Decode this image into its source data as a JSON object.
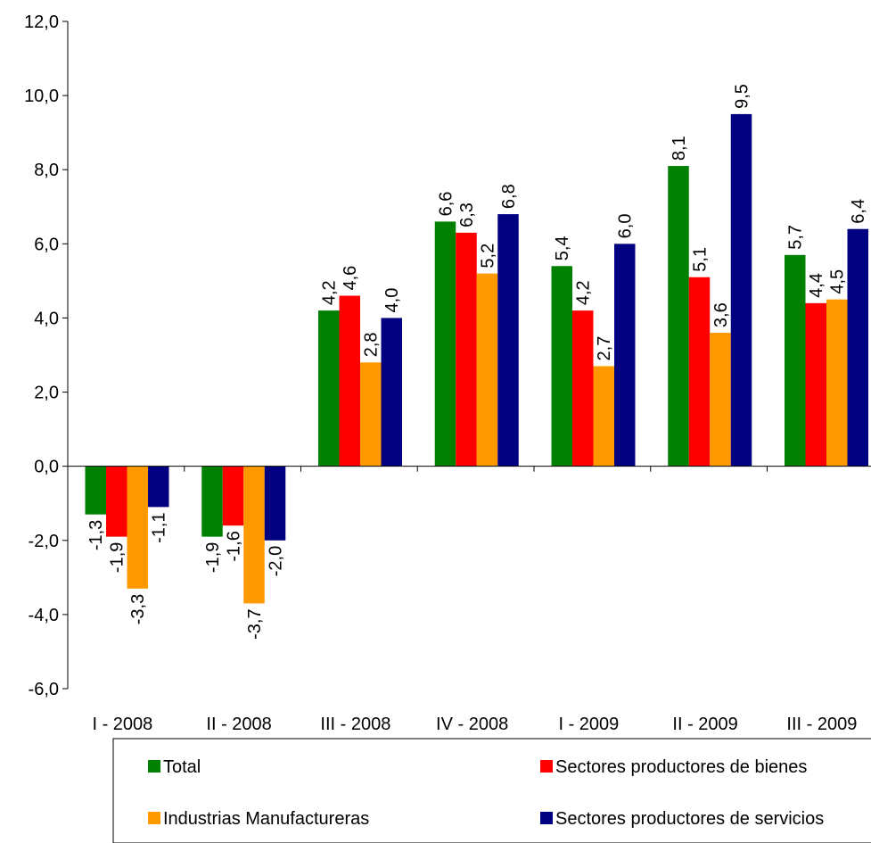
{
  "chart_data": {
    "type": "bar",
    "title": "",
    "xlabel": "",
    "ylabel": "",
    "ylim": [
      -6,
      12
    ],
    "yticks": [
      12,
      10,
      8,
      6,
      4,
      2,
      0,
      -2,
      -4,
      -6
    ],
    "ytick_labels": [
      "12,0",
      "10,0",
      "8,0",
      "6,0",
      "4,0",
      "2,0",
      "0,0",
      "-2,0",
      "-4,0",
      "-6,0"
    ],
    "grid": false,
    "legend_position": "bottom",
    "categories": [
      "I - 2008",
      "II - 2008",
      "III - 2008",
      "IV - 2008",
      "I - 2009",
      "II - 2009",
      "III - 2009"
    ],
    "series": [
      {
        "name": "Total",
        "color": "#008000",
        "values": [
          -1.3,
          -1.9,
          4.2,
          6.6,
          5.4,
          8.1,
          5.7
        ],
        "labels": [
          "-1,3",
          "-1,9",
          "4,2",
          "6,6",
          "5,4",
          "8,1",
          "5,7"
        ]
      },
      {
        "name": "Sectores productores de bienes",
        "color": "#ff0000",
        "values": [
          -1.9,
          -1.6,
          4.6,
          6.3,
          4.2,
          5.1,
          4.4
        ],
        "labels": [
          "-1,9",
          "-1,6",
          "4,6",
          "6,3",
          "4,2",
          "5,1",
          "4,4"
        ]
      },
      {
        "name": "Industrias Manufactureras",
        "color": "#ff9900",
        "values": [
          -3.3,
          -3.7,
          2.8,
          5.2,
          2.7,
          3.6,
          4.5
        ],
        "labels": [
          "-3,3",
          "-3,7",
          "2,8",
          "5,2",
          "2,7",
          "3,6",
          "4,5"
        ]
      },
      {
        "name": "Sectores productores de servicios",
        "color": "#000080",
        "values": [
          -1.1,
          -2.0,
          4.0,
          6.8,
          6.0,
          9.5,
          6.4
        ],
        "labels": [
          "-1,1",
          "-2,0",
          "4,0",
          "6,8",
          "6,0",
          "9,5",
          "6,4"
        ]
      }
    ]
  }
}
